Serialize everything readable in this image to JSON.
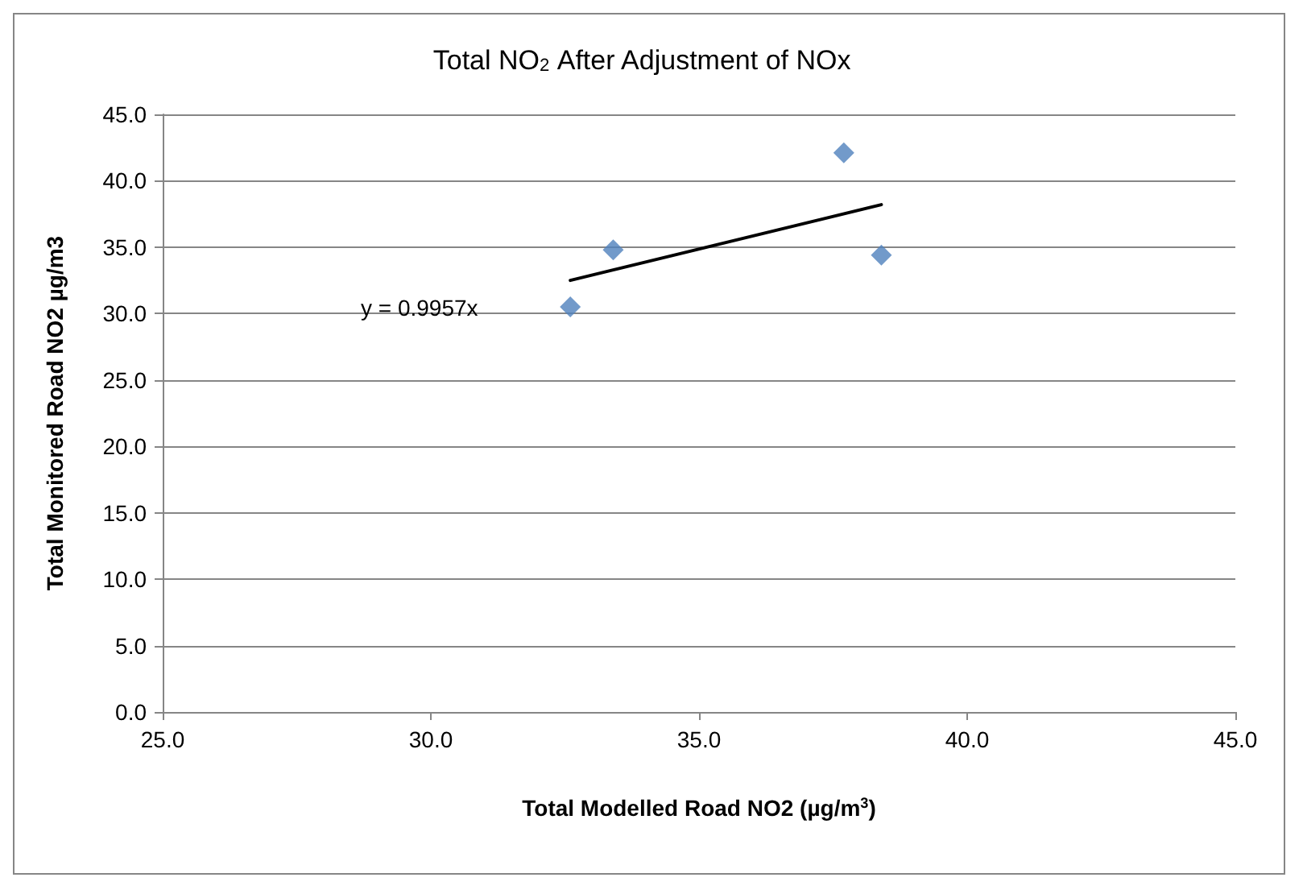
{
  "chart_data": {
    "type": "scatter",
    "title": "Total NO$_{2}$ After Adjustment of NOx",
    "xlabel": "Total Modelled Road NO2 (µg/m$^{3}$)",
    "ylabel": "Total Monitored Road NO2 µg/m3",
    "x": [
      32.6,
      33.4,
      37.7,
      38.4
    ],
    "series": [
      {
        "color": "#4f81bd",
        "values": [
          30.5,
          34.8,
          42.1,
          34.4
        ],
        "marker": "diamond"
      },
      {
        "type": "line",
        "color": "#000000",
        "x": [
          32.6,
          38.4
        ],
        "values": [
          32.5,
          38.2
        ],
        "marker": "none"
      }
    ],
    "annotations": [
      "y = 0.9957x"
    ],
    "xlim": [
      25,
      45
    ],
    "ylim": [
      0,
      45
    ],
    "xticks": [
      {
        "value": 25,
        "label": "25.0"
      },
      {
        "value": 30,
        "label": "30.0"
      },
      {
        "value": 35,
        "label": "35.0"
      },
      {
        "value": 40,
        "label": "40.0"
      },
      {
        "value": 45,
        "label": "45.0"
      }
    ],
    "yticks": [
      {
        "value": 0,
        "label": "0.0"
      },
      {
        "value": 5,
        "label": "5.0"
      },
      {
        "value": 10,
        "label": "10.0"
      },
      {
        "value": 15,
        "label": "15.0"
      },
      {
        "value": 20,
        "label": "20.0"
      },
      {
        "value": 25,
        "label": "25.0"
      },
      {
        "value": 30,
        "label": "30.0"
      },
      {
        "value": 35,
        "label": "35.0"
      },
      {
        "value": 40,
        "label": "40.0"
      },
      {
        "value": 45,
        "label": "45.0"
      }
    ],
    "grid": "y"
  }
}
